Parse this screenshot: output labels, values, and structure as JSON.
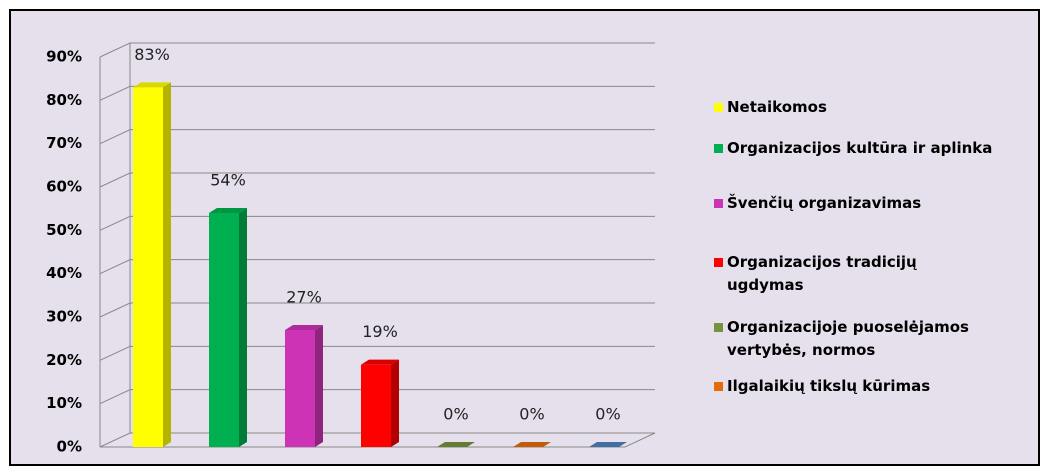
{
  "chart_data": {
    "type": "bar",
    "categories": [
      "Netaikomos",
      "Organizacijos kultūra ir aplinka",
      "Švenčių organizavimas",
      "Organizacijos tradicijų ugdymas",
      "Organizacijoje puoselėjamos vertybės, normos",
      "Ilgalaikių tikslų kūrimas",
      null
    ],
    "values": [
      83,
      54,
      27,
      19,
      0,
      0,
      0
    ],
    "value_labels": [
      "83%",
      "54%",
      "27%",
      "19%",
      "0%",
      "0%",
      "0%"
    ],
    "colors": [
      "#ffff00",
      "#00b050",
      "#cc33b5",
      "#ff0000",
      "#76923c",
      "#e36c09",
      "#4f81bd"
    ],
    "ylim": [
      0,
      90
    ],
    "yticks": [
      {
        "value": 0,
        "label": "0%"
      },
      {
        "value": 10,
        "label": "10%"
      },
      {
        "value": 20,
        "label": "20%"
      },
      {
        "value": 30,
        "label": "30%"
      },
      {
        "value": 40,
        "label": "40%"
      },
      {
        "value": 50,
        "label": "50%"
      },
      {
        "value": 60,
        "label": "60%"
      },
      {
        "value": 70,
        "label": "70%"
      },
      {
        "value": 80,
        "label": "80%"
      },
      {
        "value": 90,
        "label": "90%"
      }
    ],
    "grid": true
  }
}
